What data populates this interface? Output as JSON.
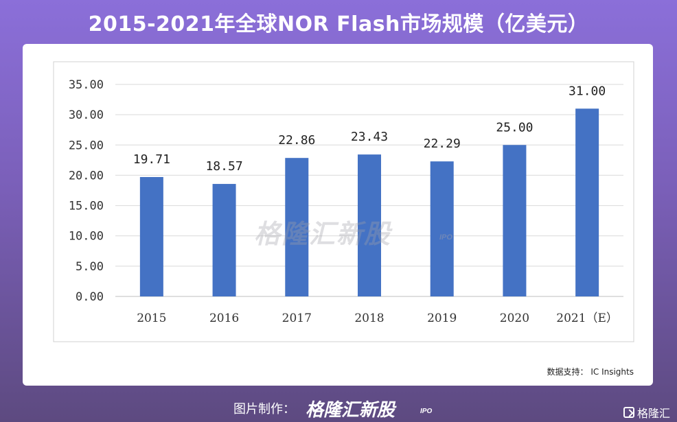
{
  "header": {
    "title": "2015-2021年全球NOR Flash市场规模（亿美元）"
  },
  "chart_data": {
    "type": "bar",
    "categories": [
      "2015",
      "2016",
      "2017",
      "2018",
      "2019",
      "2020",
      "2021（E）"
    ],
    "values": [
      19.71,
      18.57,
      22.86,
      23.43,
      22.29,
      25.0,
      31.0
    ],
    "data_labels": [
      "19.71",
      "18.57",
      "22.86",
      "23.43",
      "22.29",
      "25.00",
      "31.00"
    ],
    "ylim": [
      0,
      35
    ],
    "yticks": [
      "0.00",
      "5.00",
      "10.00",
      "15.00",
      "20.00",
      "25.00",
      "30.00",
      "35.00"
    ],
    "ytick_values": [
      0,
      5,
      10,
      15,
      20,
      25,
      30,
      35
    ],
    "grid": true,
    "bar_color": "#4472c4"
  },
  "source": {
    "text": "数据支持： IC Insights"
  },
  "watermark": {
    "text": "格隆汇新股",
    "suffix": "IPO"
  },
  "footer": {
    "credit_label": "图片制作：",
    "brand": "格隆汇新股",
    "brand_suffix": "IPO",
    "right_logo": "格隆汇"
  }
}
